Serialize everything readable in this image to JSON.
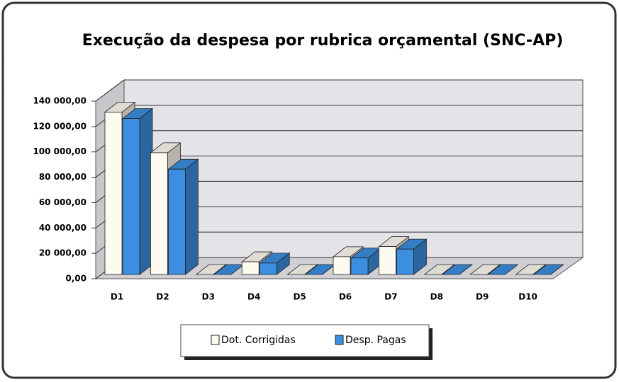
{
  "chart_data": {
    "type": "bar3d",
    "title": "Execução da despesa por rubrica orçamental (SNC-AP)",
    "categories": [
      "D1",
      "D2",
      "D3",
      "D4",
      "D5",
      "D6",
      "D7",
      "D8",
      "D9",
      "D10"
    ],
    "series": [
      {
        "name": "Dot. Corrigidas",
        "color": "#fdfbf0",
        "values": [
          128000,
          96000,
          0,
          10000,
          0,
          14000,
          22000,
          0,
          0,
          0
        ]
      },
      {
        "name": "Desp. Pagas",
        "color": "#3c8ee0",
        "values": [
          123000,
          83000,
          0,
          9000,
          0,
          13000,
          20000,
          0,
          0,
          0
        ]
      }
    ],
    "ylim": [
      0,
      140000
    ],
    "yticks": [
      {
        "value": 0,
        "label": "0,00"
      },
      {
        "value": 20000,
        "label": "20 000,00"
      },
      {
        "value": 40000,
        "label": "40 000,00"
      },
      {
        "value": 60000,
        "label": "60 000,00"
      },
      {
        "value": 80000,
        "label": "80 000,00"
      },
      {
        "value": 100000,
        "label": "100 000,00"
      },
      {
        "value": 120000,
        "label": "120 000,00"
      },
      {
        "value": 140000,
        "label": "140 000,00"
      }
    ],
    "grid": true,
    "legend": "bottom"
  }
}
